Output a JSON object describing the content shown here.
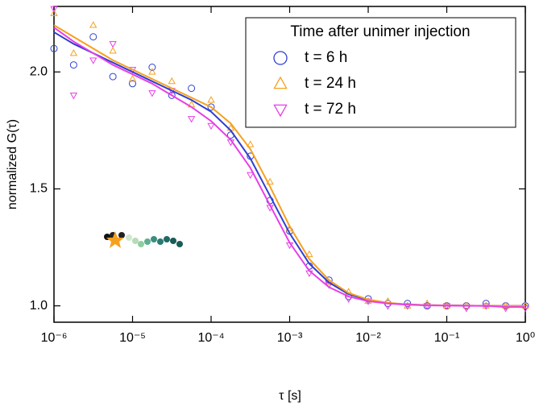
{
  "chart_data": {
    "type": "scatter",
    "xlabel": "τ [s]",
    "ylabel": "normalized G(τ)",
    "legend_title": "Time after unimer injection",
    "legend": "upper right",
    "xscale": "log",
    "xlim": [
      1e-06,
      1
    ],
    "xticks": [
      {
        "value": 1e-06,
        "label": "10⁻⁶"
      },
      {
        "value": 1e-05,
        "label": "10⁻⁵"
      },
      {
        "value": 0.0001,
        "label": "10⁻⁴"
      },
      {
        "value": 0.001,
        "label": "10⁻³"
      },
      {
        "value": 0.01,
        "label": "10⁻²"
      },
      {
        "value": 0.1,
        "label": "10⁻¹"
      },
      {
        "value": 1,
        "label": "10⁰"
      }
    ],
    "ylim": [
      0.93,
      2.28
    ],
    "yticks": [
      {
        "value": 1,
        "label": "1.0"
      },
      1.5,
      {
        "value": 2,
        "label": "2.0"
      }
    ],
    "x": [
      1e-06,
      1.778e-06,
      3.162e-06,
      5.623e-06,
      1e-05,
      1.778e-05,
      3.162e-05,
      5.623e-05,
      0.0001,
      0.0001778,
      0.0003162,
      0.0005623,
      0.001,
      0.001778,
      0.003162,
      0.005623,
      0.01,
      0.01778,
      0.03162,
      0.05623,
      0.1,
      0.1778,
      0.3162,
      0.5623,
      1
    ],
    "series": [
      {
        "name": "t = 6 h",
        "color": "#2f3fd0",
        "marker": "circle",
        "values": [
          2.1,
          2.03,
          2.15,
          1.98,
          1.95,
          2.02,
          1.9,
          1.93,
          1.85,
          1.73,
          1.64,
          1.45,
          1.32,
          1.17,
          1.11,
          1.04,
          1.03,
          1.01,
          1.01,
          1.0,
          1.0,
          1.0,
          1.01,
          1.0,
          1.0
        ],
        "fit": [
          2.17,
          2.12,
          2.08,
          2.04,
          2.0,
          1.96,
          1.92,
          1.88,
          1.83,
          1.75,
          1.63,
          1.47,
          1.31,
          1.18,
          1.1,
          1.05,
          1.025,
          1.012,
          1.006,
          1.003,
          1.002,
          1.001,
          1.0,
          1.0,
          1.0
        ]
      },
      {
        "name": "t = 24 h",
        "color": "#f5a11f",
        "marker": "triangle-up",
        "values": [
          2.25,
          2.08,
          2.2,
          2.09,
          1.97,
          2.0,
          1.96,
          1.86,
          1.88,
          1.76,
          1.69,
          1.53,
          1.33,
          1.22,
          1.1,
          1.06,
          1.02,
          1.02,
          1.0,
          1.01,
          1.0,
          1.0,
          1.0,
          1.0,
          1.0
        ],
        "fit": [
          2.2,
          2.15,
          2.1,
          2.05,
          2.01,
          1.97,
          1.93,
          1.89,
          1.85,
          1.78,
          1.67,
          1.51,
          1.34,
          1.2,
          1.11,
          1.055,
          1.027,
          1.013,
          1.006,
          1.003,
          1.002,
          1.001,
          1.0,
          1.0,
          1.0
        ]
      },
      {
        "name": "t = 72 h",
        "color": "#e83ee8",
        "marker": "triangle-down",
        "values": [
          2.27,
          1.9,
          2.05,
          2.12,
          2.01,
          1.91,
          1.92,
          1.8,
          1.77,
          1.7,
          1.56,
          1.42,
          1.26,
          1.14,
          1.09,
          1.03,
          1.02,
          1.0,
          1.0,
          1.0,
          1.0,
          0.99,
          1.0,
          0.99,
          0.99
        ],
        "fit": [
          2.19,
          2.13,
          2.08,
          2.03,
          1.99,
          1.95,
          1.9,
          1.85,
          1.79,
          1.71,
          1.59,
          1.43,
          1.27,
          1.15,
          1.08,
          1.04,
          1.02,
          1.01,
          1.005,
          1.002,
          1.001,
          1.0,
          1.0,
          0.995,
          0.995
        ]
      }
    ]
  }
}
